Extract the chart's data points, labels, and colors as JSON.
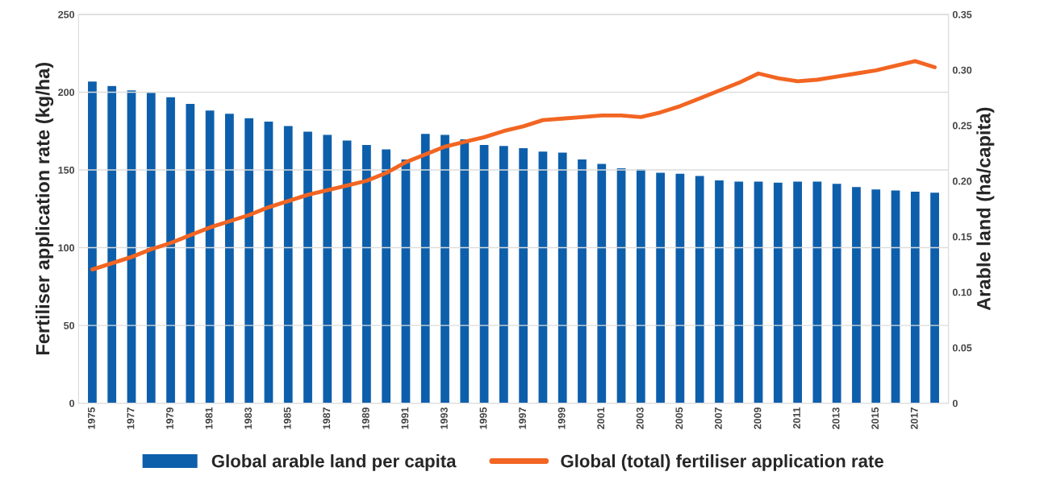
{
  "chart_data": {
    "type": "bar",
    "categories": [
      "1975",
      null,
      "1977",
      null,
      "1979",
      null,
      "1981",
      null,
      "1983",
      null,
      "1985",
      null,
      "1987",
      null,
      "1989",
      null,
      "1991",
      null,
      "1993",
      null,
      "1995",
      null,
      "1997",
      null,
      "1999",
      null,
      "2001",
      null,
      "2003",
      null,
      "2005",
      null,
      "2007",
      null,
      "2009",
      null,
      "2011",
      null,
      "2013",
      null,
      "2015",
      null,
      "2017",
      null
    ],
    "series": [
      {
        "name": "Global arable land per capita",
        "axis": "y2",
        "color": "#0d5fab",
        "values": [
          0.29,
          0.286,
          0.282,
          0.28,
          0.276,
          0.27,
          0.264,
          0.261,
          0.257,
          0.254,
          0.25,
          0.245,
          0.242,
          0.237,
          0.233,
          0.229,
          0.22,
          0.243,
          0.242,
          0.238,
          0.233,
          0.232,
          0.23,
          0.227,
          0.226,
          0.22,
          0.216,
          0.212,
          0.211,
          0.208,
          0.207,
          0.205,
          0.201,
          0.2,
          0.2,
          0.199,
          0.2,
          0.2,
          0.198,
          0.195,
          0.193,
          0.192,
          0.191,
          0.19
        ]
      },
      {
        "name": "Global (total) fertiliser application rate",
        "type": "line",
        "color": "#f26522",
        "values": [
          86,
          90,
          94,
          99,
          103,
          108,
          113,
          117,
          121,
          126,
          130,
          134,
          137,
          140,
          143,
          148,
          155,
          160,
          165,
          168,
          171,
          175,
          178,
          182,
          183,
          184,
          185,
          185,
          184,
          187,
          191,
          196,
          201,
          206,
          212,
          209,
          207,
          208,
          210,
          212,
          214,
          217,
          220,
          216
        ]
      }
    ],
    "ylabel": "Fertiliser application rate (kg/ha)",
    "y2label": "Arable land (ha/capita)",
    "ylim": [
      0,
      250
    ],
    "yticks": [
      0,
      50,
      100,
      150,
      200,
      250
    ],
    "y2lim": [
      0,
      0.35
    ],
    "y2ticks": [
      {
        "value": 0,
        "label": "0"
      },
      0.05,
      {
        "value": 0.1,
        "label": "0.10"
      },
      0.15,
      {
        "value": 0.2,
        "label": "0.20"
      },
      0.25,
      {
        "value": 0.3,
        "label": "0.30"
      },
      0.35
    ],
    "grid": "y",
    "legend": "bottom",
    "marker": "none",
    "line_style": "solid"
  }
}
